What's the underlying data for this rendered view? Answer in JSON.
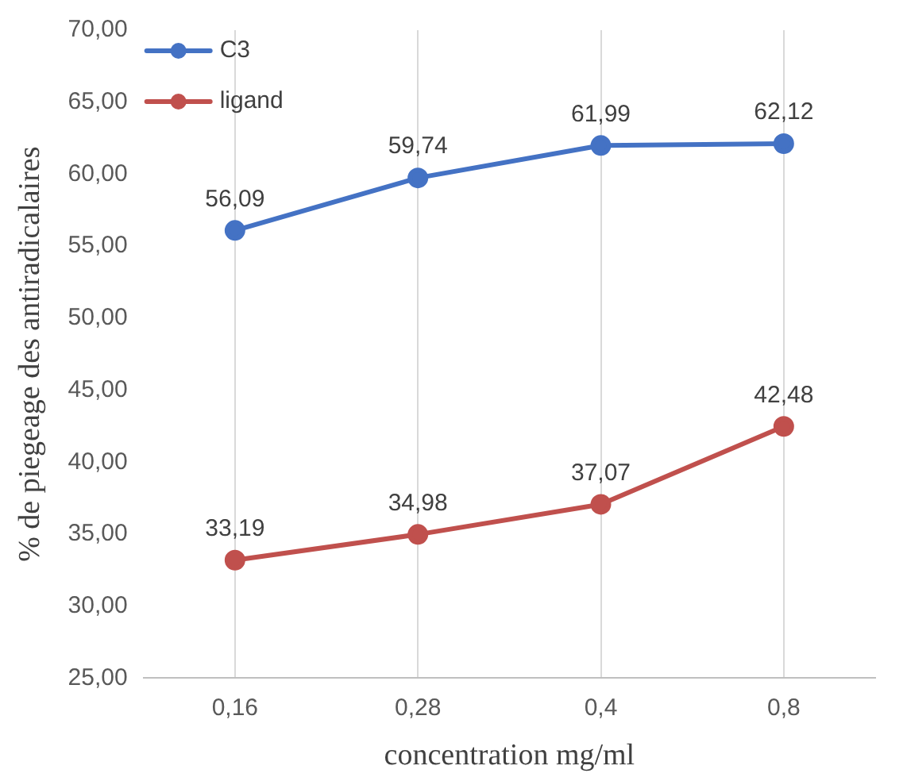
{
  "chart_data": {
    "type": "line",
    "xlabel": "concentration mg/ml",
    "ylabel": "% de piegeage des antiradicalaires",
    "categories": [
      "0,16",
      "0,28",
      "0,4",
      "0,8"
    ],
    "series": [
      {
        "name": "C3",
        "color": "#4472c4",
        "values": [
          56.09,
          59.74,
          61.99,
          62.12
        ],
        "value_labels": [
          "56,09",
          "59,74",
          "61,99",
          "62,12"
        ]
      },
      {
        "name": "ligand",
        "color": "#c0504d",
        "values": [
          33.19,
          34.98,
          37.07,
          42.48
        ],
        "value_labels": [
          "33,19",
          "34,98",
          "37,07",
          "42,48"
        ]
      }
    ],
    "ylim": [
      25,
      70
    ],
    "yticks": [
      {
        "value": 25,
        "label": "25,00"
      },
      {
        "value": 30,
        "label": "30,00"
      },
      {
        "value": 35,
        "label": "35,00"
      },
      {
        "value": 40,
        "label": "40,00"
      },
      {
        "value": 45,
        "label": "45,00"
      },
      {
        "value": 50,
        "label": "50,00"
      },
      {
        "value": 55,
        "label": "55,00"
      },
      {
        "value": 60,
        "label": "60,00"
      },
      {
        "value": 65,
        "label": "65,00"
      },
      {
        "value": 70,
        "label": "70,00"
      }
    ],
    "grid": "x",
    "legend": "top left",
    "marker": "circle",
    "line_style": "solid"
  }
}
